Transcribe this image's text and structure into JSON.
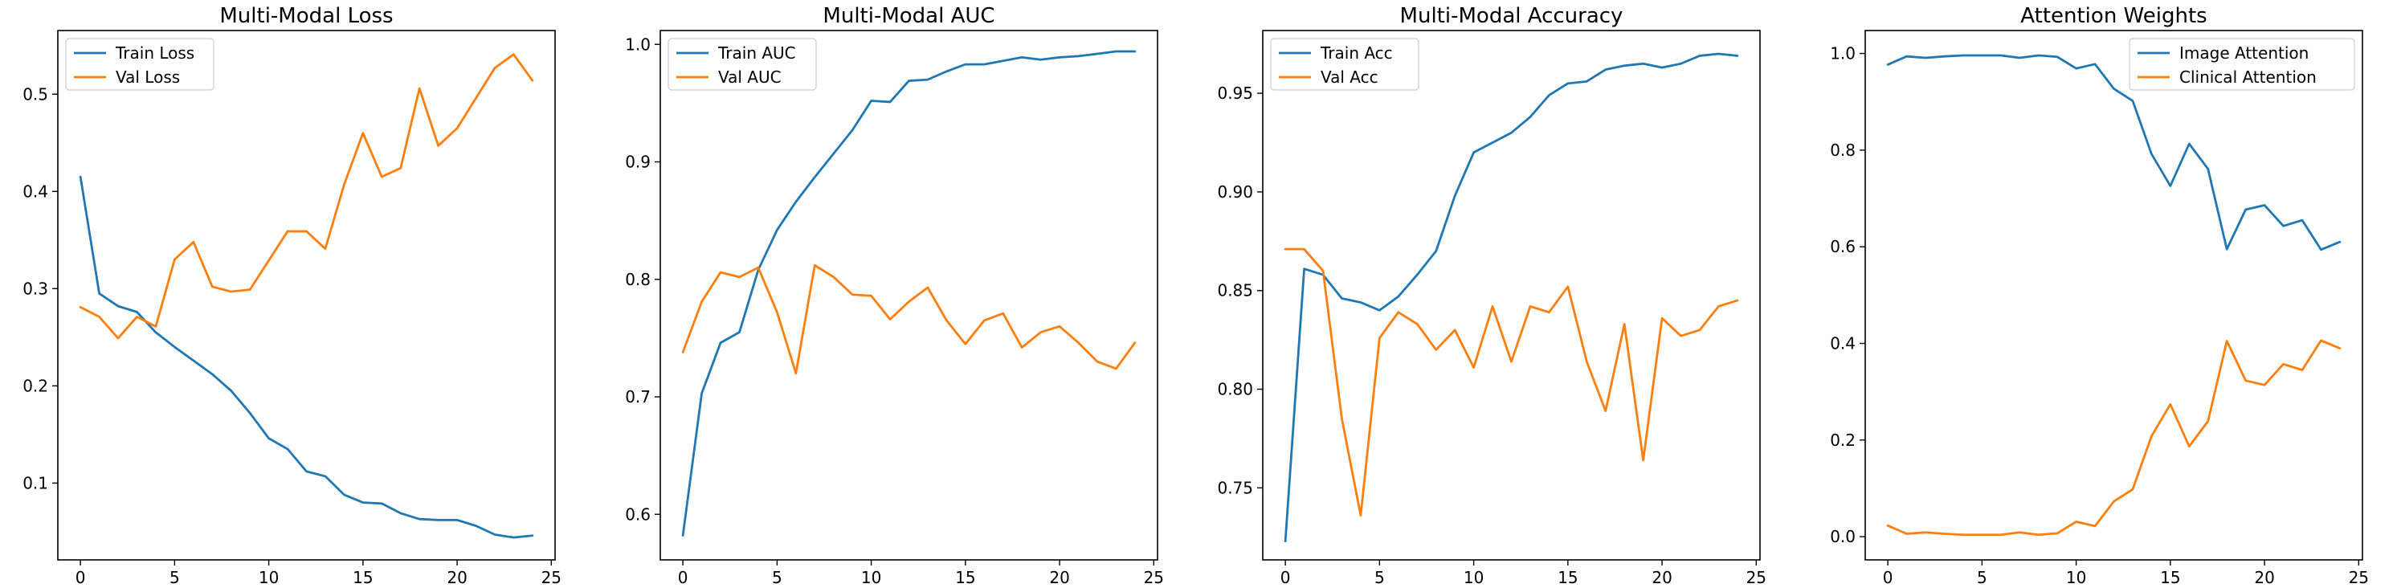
{
  "colors": {
    "series1": "#1f77b4",
    "series2": "#ff7f0e"
  },
  "chart_data": [
    {
      "type": "line",
      "title": "Multi-Modal Loss",
      "xlabel": "",
      "ylabel": "",
      "xlim": [
        -1.2,
        25.2
      ],
      "ylim": [
        0.021,
        0.5655
      ],
      "xticks": [
        0,
        5,
        10,
        15,
        20,
        25
      ],
      "yticks": [
        0.1,
        0.2,
        0.3,
        0.4,
        0.5
      ],
      "ytick_labels": [
        "0.1",
        "0.2",
        "0.3",
        "0.4",
        "0.5"
      ],
      "legend": "upper left",
      "grid": false,
      "x": [
        0,
        1,
        2,
        3,
        4,
        5,
        6,
        7,
        8,
        9,
        10,
        11,
        12,
        13,
        14,
        15,
        16,
        17,
        18,
        19,
        20,
        21,
        22,
        23,
        24
      ],
      "series": [
        {
          "name": "Train Loss",
          "values": [
            0.415,
            0.295,
            0.282,
            0.276,
            0.255,
            0.24,
            0.226,
            0.212,
            0.195,
            0.172,
            0.146,
            0.135,
            0.112,
            0.107,
            0.088,
            0.08,
            0.079,
            0.069,
            0.063,
            0.062,
            0.062,
            0.056,
            0.047,
            0.044,
            0.046
          ]
        },
        {
          "name": "Val Loss",
          "values": [
            0.281,
            0.271,
            0.249,
            0.271,
            0.261,
            0.33,
            0.348,
            0.302,
            0.297,
            0.299,
            0.329,
            0.359,
            0.359,
            0.341,
            0.407,
            0.46,
            0.415,
            0.424,
            0.506,
            0.447,
            0.465,
            0.496,
            0.527,
            0.541,
            0.514
          ]
        }
      ]
    },
    {
      "type": "line",
      "title": "Multi-Modal AUC",
      "xlabel": "",
      "ylabel": "",
      "xlim": [
        -1.2,
        25.2
      ],
      "ylim": [
        0.5612,
        1.0118
      ],
      "xticks": [
        0,
        5,
        10,
        15,
        20,
        25
      ],
      "yticks": [
        0.6,
        0.7,
        0.8,
        0.9,
        1.0
      ],
      "ytick_labels": [
        "0.6",
        "0.7",
        "0.8",
        "0.9",
        "1.0"
      ],
      "legend": "upper left",
      "grid": false,
      "x": [
        0,
        1,
        2,
        3,
        4,
        5,
        6,
        7,
        8,
        9,
        10,
        11,
        12,
        13,
        14,
        15,
        16,
        17,
        18,
        19,
        20,
        21,
        22,
        23,
        24
      ],
      "series": [
        {
          "name": "Train AUC",
          "values": [
            0.582,
            0.703,
            0.746,
            0.755,
            0.808,
            0.842,
            0.866,
            0.887,
            0.907,
            0.927,
            0.952,
            0.951,
            0.969,
            0.97,
            0.977,
            0.983,
            0.983,
            0.986,
            0.989,
            0.987,
            0.989,
            0.99,
            0.992,
            0.994,
            0.994
          ]
        },
        {
          "name": "Val AUC",
          "values": [
            0.738,
            0.781,
            0.806,
            0.802,
            0.81,
            0.772,
            0.72,
            0.812,
            0.802,
            0.787,
            0.786,
            0.766,
            0.781,
            0.793,
            0.765,
            0.745,
            0.765,
            0.771,
            0.742,
            0.755,
            0.76,
            0.746,
            0.73,
            0.724,
            0.746
          ]
        }
      ]
    },
    {
      "type": "line",
      "title": "Multi-Modal Accuracy",
      "xlabel": "",
      "ylabel": "",
      "xlim": [
        -1.2,
        25.2
      ],
      "ylim": [
        0.7135,
        0.9818
      ],
      "xticks": [
        0,
        5,
        10,
        15,
        20,
        25
      ],
      "yticks": [
        0.75,
        0.8,
        0.85,
        0.9,
        0.95
      ],
      "ytick_labels": [
        "0.75",
        "0.80",
        "0.85",
        "0.90",
        "0.95"
      ],
      "legend": "upper left",
      "grid": false,
      "x": [
        0,
        1,
        2,
        3,
        4,
        5,
        6,
        7,
        8,
        9,
        10,
        11,
        12,
        13,
        14,
        15,
        16,
        17,
        18,
        19,
        20,
        21,
        22,
        23,
        24
      ],
      "series": [
        {
          "name": "Train Acc",
          "values": [
            0.723,
            0.861,
            0.858,
            0.846,
            0.844,
            0.84,
            0.847,
            0.858,
            0.87,
            0.898,
            0.92,
            0.925,
            0.93,
            0.938,
            0.949,
            0.955,
            0.956,
            0.962,
            0.964,
            0.965,
            0.963,
            0.965,
            0.969,
            0.97,
            0.969
          ]
        },
        {
          "name": "Val Acc",
          "values": [
            0.871,
            0.871,
            0.86,
            0.785,
            0.736,
            0.826,
            0.839,
            0.833,
            0.82,
            0.83,
            0.811,
            0.842,
            0.814,
            0.842,
            0.839,
            0.852,
            0.814,
            0.789,
            0.833,
            0.764,
            0.836,
            0.827,
            0.83,
            0.842,
            0.845
          ]
        }
      ]
    },
    {
      "type": "line",
      "title": "Attention Weights",
      "xlabel": "",
      "ylabel": "",
      "xlim": [
        -1.2,
        25.2
      ],
      "ylim": [
        -0.048,
        1.0475
      ],
      "xticks": [
        0,
        5,
        10,
        15,
        20,
        25
      ],
      "yticks": [
        0.0,
        0.2,
        0.4,
        0.6,
        0.8,
        1.0
      ],
      "ytick_labels": [
        "0.0",
        "0.2",
        "0.4",
        "0.6",
        "0.8",
        "1.0"
      ],
      "legend": "upper right",
      "grid": false,
      "x": [
        0,
        1,
        2,
        3,
        4,
        5,
        6,
        7,
        8,
        9,
        10,
        11,
        12,
        13,
        14,
        15,
        16,
        17,
        18,
        19,
        20,
        21,
        22,
        23,
        24
      ],
      "series": [
        {
          "name": "Image Attention",
          "values": [
            0.977,
            0.994,
            0.991,
            0.994,
            0.996,
            0.996,
            0.996,
            0.991,
            0.996,
            0.993,
            0.969,
            0.978,
            0.927,
            0.902,
            0.792,
            0.726,
            0.813,
            0.761,
            0.595,
            0.677,
            0.686,
            0.643,
            0.655,
            0.594,
            0.61
          ]
        },
        {
          "name": "Clinical Attention",
          "values": [
            0.023,
            0.006,
            0.009,
            0.006,
            0.004,
            0.004,
            0.004,
            0.009,
            0.004,
            0.007,
            0.031,
            0.022,
            0.073,
            0.098,
            0.208,
            0.274,
            0.187,
            0.239,
            0.405,
            0.323,
            0.314,
            0.357,
            0.345,
            0.406,
            0.39
          ]
        }
      ]
    }
  ]
}
